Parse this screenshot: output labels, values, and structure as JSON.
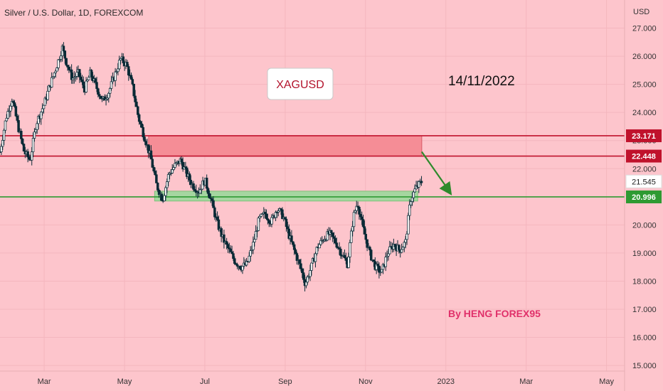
{
  "header": {
    "symbol_title": "Silver / U.S. Dollar, 1D, FOREXCOM"
  },
  "annotations": {
    "ticker_box": "XAGUSD",
    "date_text": "14/11/2022",
    "author_text": "By HENG FOREX95"
  },
  "colors": {
    "background": "#fdc5cc",
    "candle": "#0b2a36",
    "resistance_line": "#c0122c",
    "support_line": "#2e9a32",
    "resistance_zone": "#f58d96",
    "support_zone": "#a5d6a0",
    "arrow": "#2e8a2c",
    "ticker_text": "#b3132c",
    "author_text": "#e0306a"
  },
  "chart_data": {
    "type": "candlestick",
    "title": "Silver / U.S. Dollar, 1D, FOREXCOM",
    "ylabel": "USD",
    "ylim": [
      14.8,
      28.0
    ],
    "y_ticks": [
      "15.000",
      "16.000",
      "17.000",
      "18.000",
      "19.000",
      "20.000",
      "21.000",
      "22.000",
      "23.000",
      "24.000",
      "25.000",
      "26.000",
      "27.000"
    ],
    "x_ticks": [
      "Mar",
      "May",
      "Jul",
      "Sep",
      "Nov",
      "2023",
      "Mar",
      "May"
    ],
    "x_tick_months": [
      2,
      4,
      6,
      8,
      10,
      12,
      14,
      16
    ],
    "x_start_months": 0.9,
    "x_end_months": 16.45,
    "price_labels": [
      {
        "value": 23.171,
        "text": "23.171",
        "style": "resistance"
      },
      {
        "value": 22.448,
        "text": "22.448",
        "style": "resistance"
      },
      {
        "value": 21.545,
        "text": "21.545",
        "style": "last"
      },
      {
        "value": 20.996,
        "text": "20.996",
        "style": "support"
      }
    ],
    "horizontal_lines": [
      {
        "value": 23.171,
        "style": "resistance"
      },
      {
        "value": 22.448,
        "style": "resistance"
      },
      {
        "value": 20.996,
        "style": "support"
      }
    ],
    "zones": [
      {
        "from_month": 4.6,
        "to_month": 11.4,
        "low": 22.448,
        "high": 23.171,
        "style": "resistance"
      },
      {
        "from_month": 4.75,
        "to_month": 11.3,
        "low": 20.85,
        "high": 21.2,
        "style": "support"
      }
    ],
    "arrow": {
      "from_month": 11.4,
      "from_value": 22.6,
      "to_month": 12.15,
      "to_value": 21.05
    },
    "price_path": [
      [
        0.9,
        22.6
      ],
      [
        1.05,
        23.8
      ],
      [
        1.2,
        24.5
      ],
      [
        1.35,
        23.5
      ],
      [
        1.5,
        22.6
      ],
      [
        1.65,
        22.3
      ],
      [
        1.8,
        23.6
      ],
      [
        2.0,
        24.3
      ],
      [
        2.15,
        25.0
      ],
      [
        2.3,
        25.6
      ],
      [
        2.45,
        26.3
      ],
      [
        2.55,
        25.8
      ],
      [
        2.7,
        25.2
      ],
      [
        2.85,
        25.4
      ],
      [
        3.0,
        24.8
      ],
      [
        3.15,
        25.4
      ],
      [
        3.3,
        24.9
      ],
      [
        3.45,
        24.4
      ],
      [
        3.6,
        24.7
      ],
      [
        3.75,
        25.3
      ],
      [
        3.9,
        25.9
      ],
      [
        4.05,
        25.7
      ],
      [
        4.2,
        24.9
      ],
      [
        4.35,
        23.8
      ],
      [
        4.5,
        23.1
      ],
      [
        4.65,
        22.4
      ],
      [
        4.8,
        21.4
      ],
      [
        4.95,
        20.9
      ],
      [
        5.1,
        21.8
      ],
      [
        5.25,
        22.1
      ],
      [
        5.4,
        22.3
      ],
      [
        5.55,
        21.8
      ],
      [
        5.7,
        21.4
      ],
      [
        5.85,
        21.2
      ],
      [
        6.0,
        21.6
      ],
      [
        6.15,
        20.9
      ],
      [
        6.3,
        20.1
      ],
      [
        6.45,
        19.5
      ],
      [
        6.6,
        19.1
      ],
      [
        6.75,
        18.7
      ],
      [
        6.9,
        18.5
      ],
      [
        7.05,
        18.6
      ],
      [
        7.2,
        19.3
      ],
      [
        7.35,
        20.2
      ],
      [
        7.5,
        20.4
      ],
      [
        7.65,
        20.1
      ],
      [
        7.8,
        20.6
      ],
      [
        7.95,
        20.3
      ],
      [
        8.1,
        19.6
      ],
      [
        8.25,
        19.0
      ],
      [
        8.4,
        18.4
      ],
      [
        8.5,
        17.9
      ],
      [
        8.65,
        18.5
      ],
      [
        8.8,
        19.2
      ],
      [
        8.95,
        19.5
      ],
      [
        9.1,
        19.7
      ],
      [
        9.25,
        19.4
      ],
      [
        9.4,
        19.0
      ],
      [
        9.55,
        18.6
      ],
      [
        9.7,
        20.3
      ],
      [
        9.8,
        20.8
      ],
      [
        9.95,
        19.8
      ],
      [
        10.1,
        19.0
      ],
      [
        10.25,
        18.5
      ],
      [
        10.4,
        18.3
      ],
      [
        10.55,
        19.0
      ],
      [
        10.7,
        19.3
      ],
      [
        10.85,
        19.1
      ],
      [
        11.0,
        19.4
      ],
      [
        11.12,
        20.9
      ],
      [
        11.25,
        21.3
      ],
      [
        11.4,
        21.545
      ]
    ]
  }
}
